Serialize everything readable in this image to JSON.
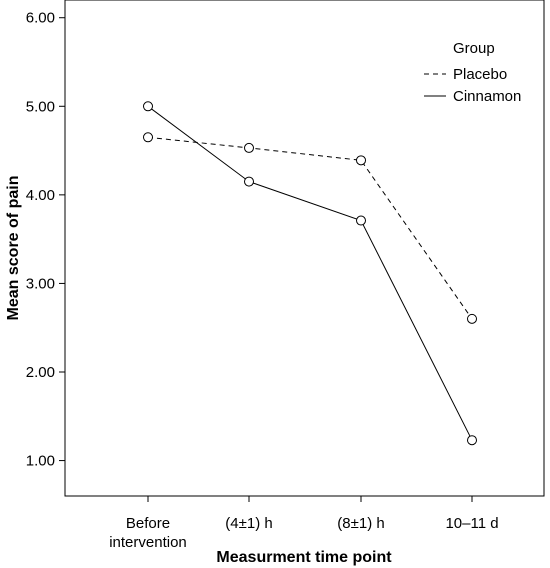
{
  "chart_data": {
    "type": "line",
    "title": "",
    "xlabel": "Measurment time point",
    "ylabel": "Mean score of pain",
    "categories": [
      [
        "Before",
        "intervention"
      ],
      [
        "(4±1) h"
      ],
      [
        "(8±1) h"
      ],
      [
        "10–11 d"
      ]
    ],
    "ylim": [
      0.6,
      6.2
    ],
    "yticks": [
      "1.00",
      "2.00",
      "3.00",
      "4.00",
      "5.00",
      "6.00"
    ],
    "ytick_values": [
      1,
      2,
      3,
      4,
      5,
      6
    ],
    "grid": false,
    "legend": {
      "title": "Group",
      "position": "top-right"
    },
    "series": [
      {
        "name": "Placebo",
        "dash": "dashed",
        "color": "#000000",
        "values": [
          4.65,
          4.53,
          4.39,
          2.6
        ]
      },
      {
        "name": "Cinnamon",
        "dash": "solid",
        "color": "#000000",
        "values": [
          5.0,
          4.15,
          3.71,
          1.23
        ]
      }
    ]
  }
}
